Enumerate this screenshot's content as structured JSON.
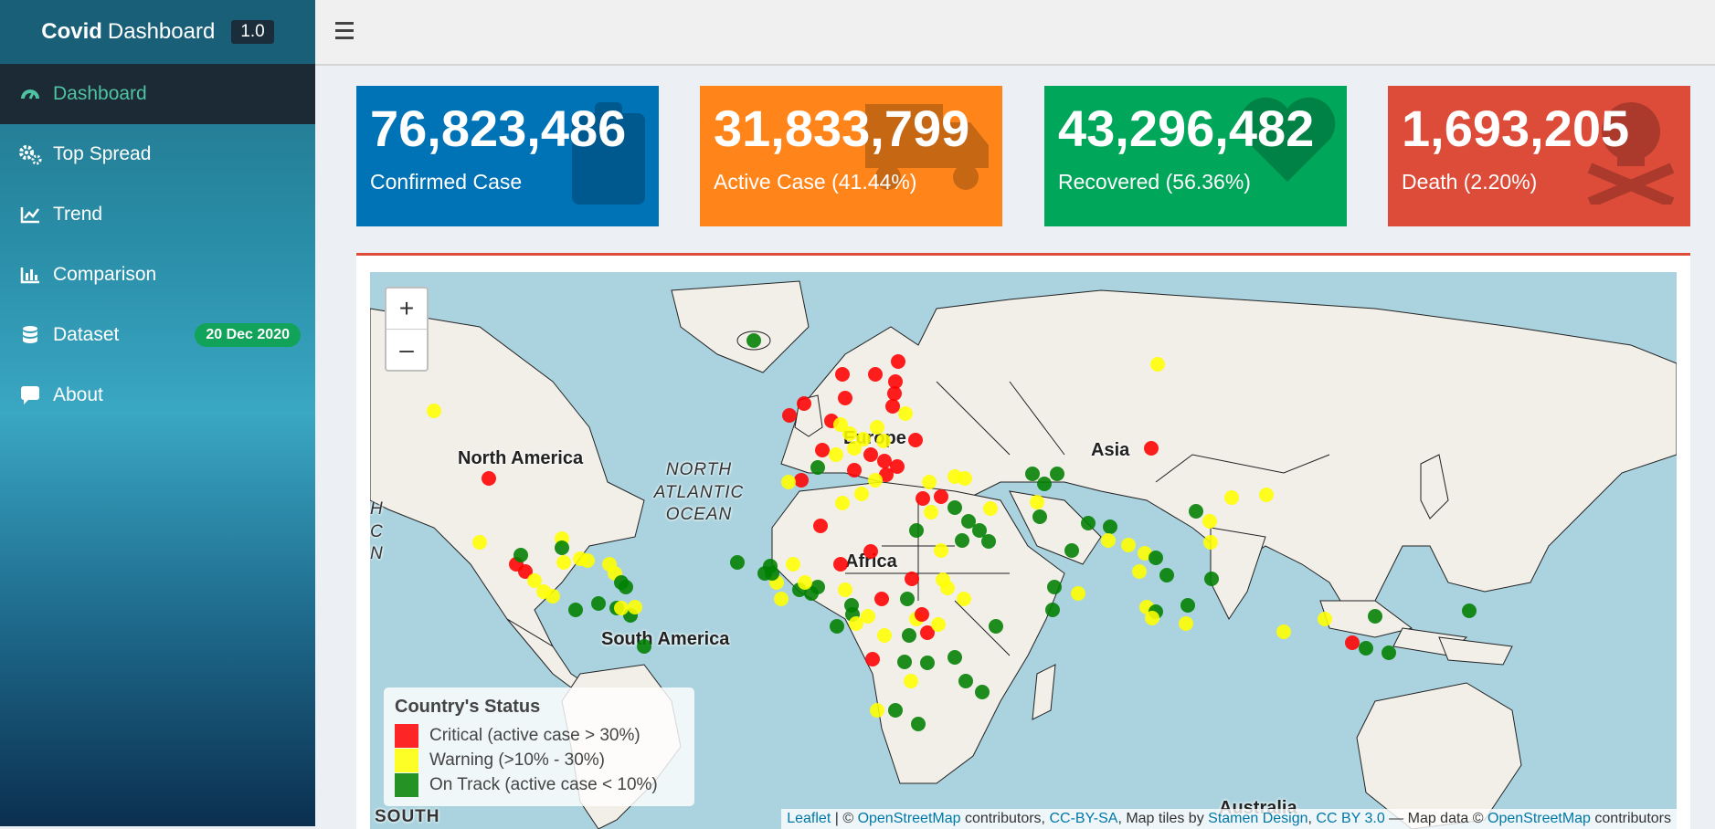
{
  "app": {
    "title_bold": "Covid",
    "title_rest": "Dashboard",
    "version": "1.0"
  },
  "sidebar": {
    "items": [
      {
        "label": "Dashboard",
        "icon": "dashboard-icon",
        "active": true
      },
      {
        "label": "Top Spread",
        "icon": "cogs-icon"
      },
      {
        "label": "Trend",
        "icon": "line-chart-icon"
      },
      {
        "label": "Comparison",
        "icon": "bar-chart-icon"
      },
      {
        "label": "Dataset",
        "icon": "database-icon",
        "badge": "20 Dec 2020"
      },
      {
        "label": "About",
        "icon": "comment-icon"
      }
    ]
  },
  "stats": [
    {
      "value": "76,823,486",
      "label": "Confirmed Case",
      "color": "#0073b7",
      "icon": "list-icon"
    },
    {
      "value": "31,833,799",
      "label": "Active Case (41.44%)",
      "color": "#ff851b",
      "icon": "truck-icon"
    },
    {
      "value": "43,296,482",
      "label": "Recovered (56.36%)",
      "color": "#00a65a",
      "icon": "heart-icon"
    },
    {
      "value": "1,693,205",
      "label": "Death (2.20%)",
      "color": "#dd4b39",
      "icon": "skull-icon"
    }
  ],
  "map": {
    "zoom_in": "+",
    "zoom_out": "–",
    "labels": {
      "north_america": "North America",
      "europe": "Europe",
      "asia": "Asia",
      "africa": "Africa",
      "south_america": "South America",
      "australia": "Australia",
      "ocean": "NORTH ATLANTIC OCEAN",
      "edge_left": "H C N",
      "south_edge": "SOUTH"
    },
    "legend": {
      "title": "Country's Status",
      "items": [
        {
          "label": "Critical (active case > 30%)",
          "color": "#ff0000"
        },
        {
          "label": "Warning (>10% - 30%)",
          "color": "#ffff00"
        },
        {
          "label": "On Track (active case < 10%)",
          "color": "#008000"
        }
      ]
    },
    "attribution": {
      "leaflet": "Leaflet",
      "sep1": " | © ",
      "osm": "OpenStreetMap",
      "t1": " contributors, ",
      "ccbysa": "CC-BY-SA",
      "t2": ", Map tiles by ",
      "stamen": "Stamen Design",
      "t3": ", ",
      "ccby": "CC BY 3.0",
      "t4": " — Map data © ",
      "osm2": "OpenStreetMap",
      "t5": " contributors"
    }
  }
}
